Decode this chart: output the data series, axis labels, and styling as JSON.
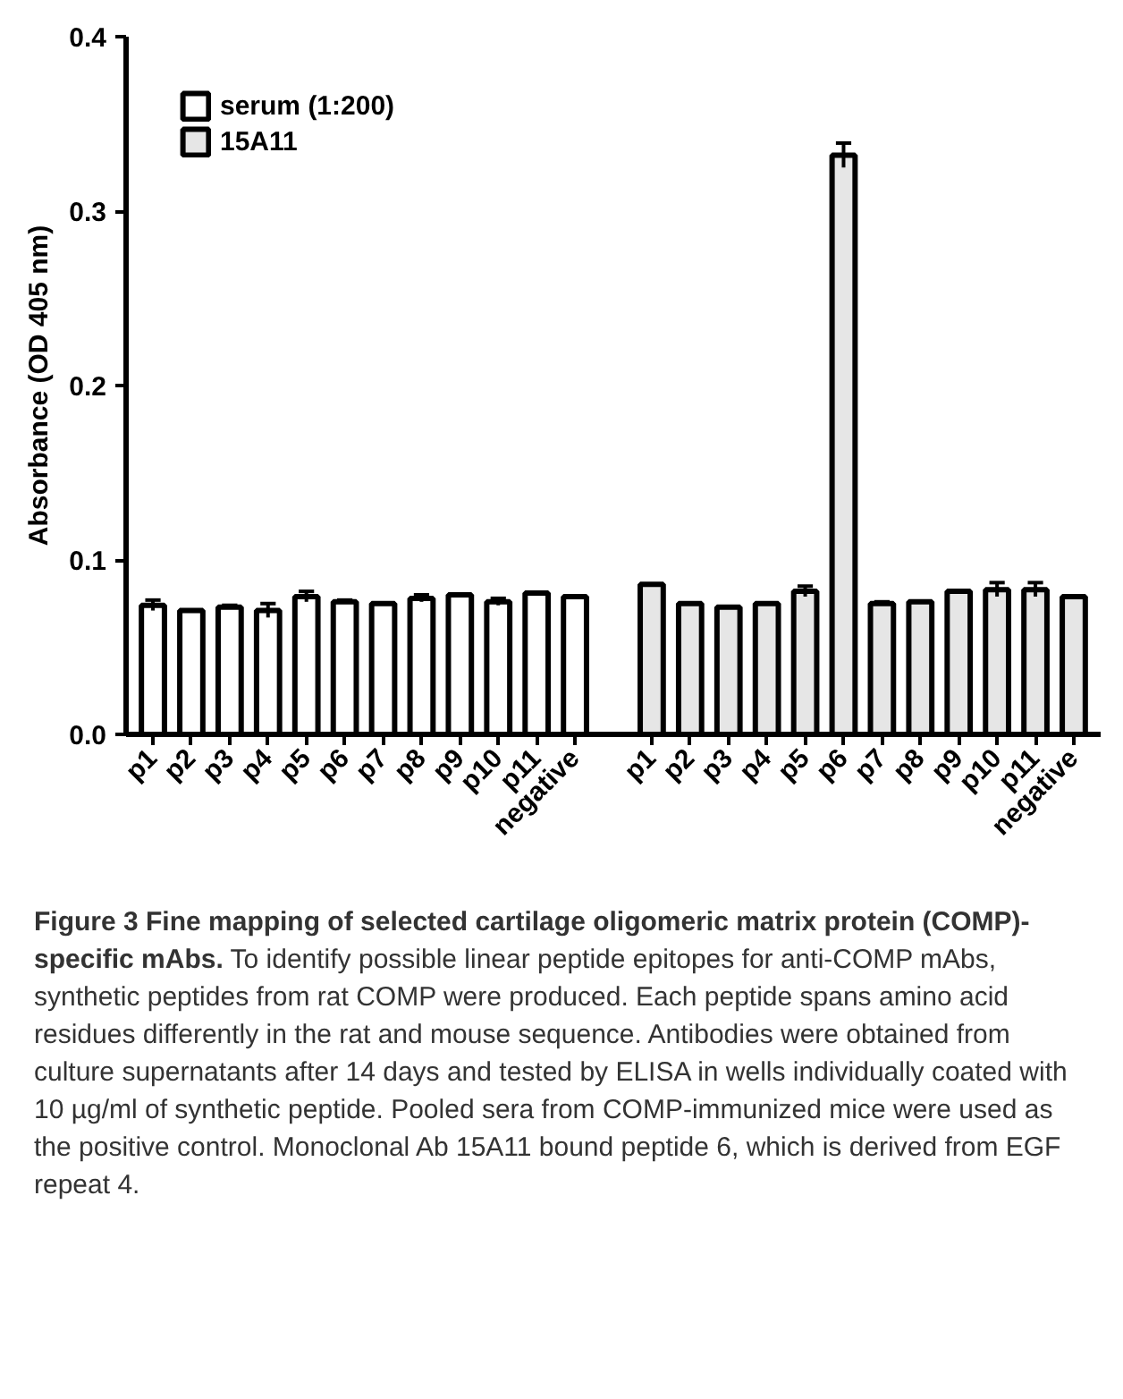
{
  "chart_data": {
    "type": "bar",
    "title": "Figure 3 Fine mapping of selected cartilage oligomeric matrix protein (COMP)-specific mAbs.",
    "ylabel": "Absorbance (OD 405 nm)",
    "categories": [
      "p1",
      "p2",
      "p3",
      "p4",
      "p5",
      "p6",
      "p7",
      "p8",
      "p9",
      "p10",
      "p11",
      "negative",
      null,
      "p1",
      "p2",
      "p3",
      "p4",
      "p5",
      "p6",
      "p7",
      "p8",
      "p9",
      "p10",
      "p11",
      "negative"
    ],
    "series": [
      {
        "name": "serum (1:200)",
        "color": "#ffffff",
        "values": [
          0.074,
          0.071,
          0.073,
          0.071,
          0.079,
          0.076,
          0.075,
          0.078,
          0.08,
          0.076,
          0.081,
          0.079,
          null,
          null,
          null,
          null,
          null,
          null,
          null,
          null,
          null,
          null,
          null,
          null,
          null
        ],
        "errors": [
          0.003,
          null,
          0.001,
          0.004,
          0.003,
          0.001,
          null,
          0.002,
          null,
          0.002,
          null,
          null,
          null,
          null,
          null,
          null,
          null,
          null,
          null,
          null,
          null,
          null,
          null,
          null,
          null
        ]
      },
      {
        "name": "15A11",
        "color": "#e6e6e6",
        "values": [
          null,
          null,
          null,
          null,
          null,
          null,
          null,
          null,
          null,
          null,
          null,
          null,
          null,
          0.086,
          0.075,
          0.073,
          0.075,
          0.082,
          0.332,
          0.075,
          0.076,
          0.082,
          0.083,
          0.083,
          0.079
        ],
        "errors": [
          null,
          null,
          null,
          null,
          null,
          null,
          null,
          null,
          null,
          null,
          null,
          null,
          null,
          null,
          null,
          null,
          null,
          0.003,
          0.007,
          0.001,
          null,
          null,
          0.004,
          0.004,
          null
        ]
      }
    ],
    "ylim": [
      0,
      0.4
    ],
    "yticks": [
      {
        "value": 0,
        "label": "0.0"
      },
      {
        "value": 0.1,
        "label": "0.1"
      },
      {
        "value": 0.2,
        "label": "0.2"
      },
      {
        "value": 0.3,
        "label": "0.3"
      },
      {
        "value": 0.4,
        "label": "0.4"
      }
    ],
    "grid": false,
    "legend": "top left",
    "annotations": [
      "To identify possible linear peptide epitopes for anti-COMP mAbs, synthetic peptides from rat COMP were produced. Each peptide spans amino acid residues differently in the rat and mouse sequence. Antibodies were obtained from culture supernatants after 14 days and tested by ELISA in wells individually coated with 10 µg/ml of synthetic peptide. Pooled sera from COMP-immunized mice were used as the positive control. Monoclonal Ab 15A11 bound peptide 6, which is derived from EGF repeat 4."
    ]
  }
}
